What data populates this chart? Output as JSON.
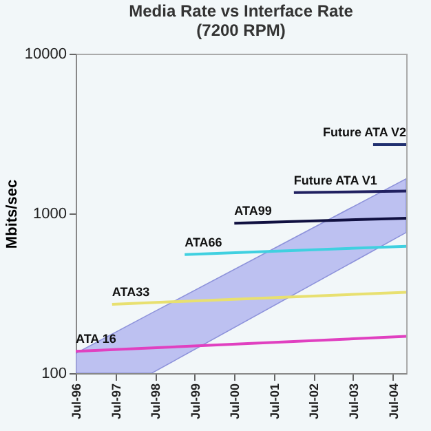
{
  "chart_data": {
    "type": "line",
    "title": "Media Rate vs Interface Rate\n(7200 RPM)",
    "ylabel": "Mbits/sec",
    "log": "y",
    "grid": false,
    "legend": false,
    "marker": "none",
    "line_style": "solid",
    "xlim": [
      "1996-07",
      "2004-11"
    ],
    "ylim": [
      100,
      10000
    ],
    "yticks": [
      100,
      1000,
      10000
    ],
    "xticks": [
      {
        "value": "1996-07",
        "label": "Jul-96"
      },
      {
        "value": "1997-07",
        "label": "Jul-97"
      },
      {
        "value": "1998-07",
        "label": "Jul-98"
      },
      {
        "value": "1999-07",
        "label": "Jul-99"
      },
      {
        "value": "2000-07",
        "label": "Jul-00"
      },
      {
        "value": "2001-07",
        "label": "Jul-01"
      },
      {
        "value": "2002-07",
        "label": "Jul-02"
      },
      {
        "value": "2003-07",
        "label": "Jul-03"
      },
      {
        "value": "2004-07",
        "label": "Jul-04"
      }
    ],
    "series": [
      {
        "type": "area",
        "color": "#b4b8f0",
        "x": [
          "1996-07",
          "1998-06",
          "2004-11"
        ],
        "values": [
          null,
          null,
          null
        ],
        "lower": [
          100,
          100,
          760
        ],
        "upper": [
          133,
          238,
          1650
        ]
      },
      {
        "name": "ATA 16",
        "color": "#e040c0",
        "x": [
          "1996-07",
          "2004-11"
        ],
        "values": [
          137,
          170
        ]
      },
      {
        "name": "ATA33",
        "color": "#e8e070",
        "x": [
          "1997-06",
          "2004-11"
        ],
        "values": [
          270,
          321
        ]
      },
      {
        "name": "ATA66",
        "color": "#40d0e0",
        "x": [
          "1999-04",
          "2004-11"
        ],
        "values": [
          552,
          623
        ]
      },
      {
        "name": "ATA99",
        "color": "#101040",
        "x": [
          "2000-07",
          "2004-11"
        ],
        "values": [
          868,
          934
        ]
      },
      {
        "name": "Future ATA V1",
        "color": "#202060",
        "x": [
          "2002-01",
          "2004-11"
        ],
        "values": [
          1350,
          1380
        ]
      },
      {
        "name": "Future ATA V2",
        "color": "#203070",
        "x": [
          "2004-01",
          "2004-11"
        ],
        "values": [
          2700,
          2700
        ]
      }
    ]
  }
}
